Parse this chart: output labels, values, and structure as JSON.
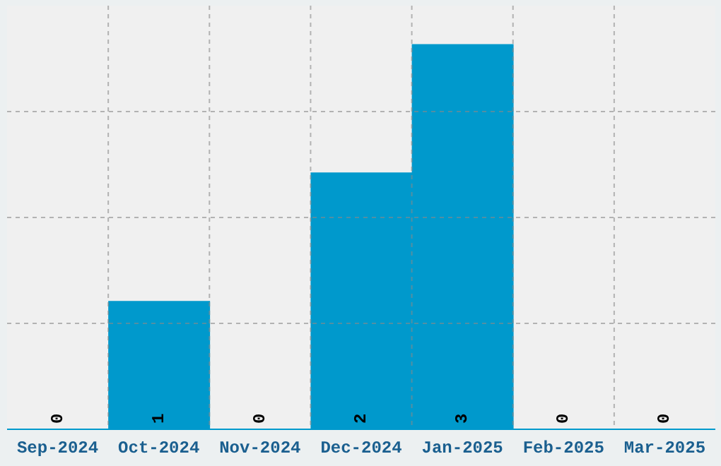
{
  "chart_data": {
    "type": "bar",
    "categories": [
      "Sep-2024",
      "Oct-2024",
      "Nov-2024",
      "Dec-2024",
      "Jan-2025",
      "Feb-2025",
      "Mar-2025"
    ],
    "values": [
      0,
      1,
      0,
      2,
      3,
      0,
      0
    ],
    "color": "#0099cc",
    "data_labels": true,
    "grid": true,
    "tick_labels": "x",
    "ylim": [
      0,
      3.3
    ]
  }
}
